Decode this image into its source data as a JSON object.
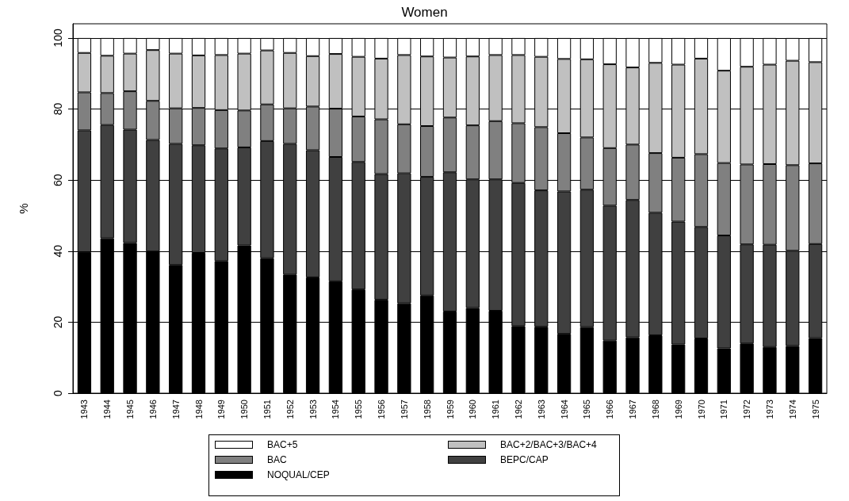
{
  "chart_data": {
    "type": "bar",
    "title": "Women",
    "ylabel": "%",
    "stacked": true,
    "categories": [
      "1943",
      "1944",
      "1945",
      "1946",
      "1947",
      "1948",
      "1949",
      "1950",
      "1951",
      "1952",
      "1953",
      "1954",
      "1955",
      "1956",
      "1957",
      "1958",
      "1959",
      "1960",
      "1961",
      "1962",
      "1963",
      "1964",
      "1965",
      "1966",
      "1967",
      "1968",
      "1969",
      "1970",
      "1971",
      "1972",
      "1973",
      "1974",
      "1975"
    ],
    "series": [
      {
        "name": "NOQUAL/CEP",
        "color": "#000000",
        "values": [
          39.7,
          43.6,
          42.3,
          39.9,
          36.1,
          39.5,
          37.2,
          41.6,
          38.0,
          33.4,
          32.6,
          31.5,
          29.2,
          26.3,
          25.3,
          27.5,
          23.0,
          24.0,
          23.2,
          18.9,
          18.7,
          16.7,
          18.6,
          14.8,
          15.7,
          16.3,
          13.7,
          15.4,
          12.6,
          14.0,
          13.0,
          13.3,
          15.5
        ]
      },
      {
        "name": "BEPC/CAP",
        "color": "#404040",
        "values": [
          34.3,
          31.9,
          31.9,
          31.4,
          34.1,
          30.3,
          31.7,
          27.6,
          33.0,
          36.8,
          35.8,
          35.0,
          35.9,
          35.4,
          36.6,
          33.4,
          39.2,
          36.2,
          37.0,
          40.3,
          38.4,
          40.1,
          38.7,
          38.0,
          38.7,
          34.5,
          34.6,
          31.4,
          31.8,
          27.9,
          28.8,
          26.8,
          26.5
        ]
      },
      {
        "name": "BAC",
        "color": "#808080",
        "values": [
          10.7,
          9.0,
          10.8,
          11.0,
          10.0,
          10.5,
          10.8,
          10.4,
          10.3,
          10.0,
          12.3,
          13.6,
          12.8,
          15.4,
          13.8,
          14.3,
          15.4,
          15.2,
          16.4,
          16.8,
          17.8,
          16.4,
          14.7,
          16.2,
          15.6,
          16.8,
          18.0,
          20.5,
          20.4,
          22.5,
          22.7,
          24.1,
          22.7
        ]
      },
      {
        "name": "BAC+2/BAC+3/BAC+4",
        "color": "#c0c0c0",
        "values": [
          11.1,
          10.5,
          10.6,
          14.3,
          15.4,
          14.8,
          15.5,
          16.0,
          15.2,
          15.6,
          14.2,
          15.4,
          16.8,
          17.1,
          19.5,
          19.6,
          16.9,
          19.4,
          18.6,
          19.2,
          19.8,
          20.9,
          22.0,
          23.6,
          21.7,
          25.4,
          26.2,
          26.9,
          26.0,
          27.5,
          28.0,
          29.4,
          28.5
        ]
      },
      {
        "name": "BAC+5",
        "color": "#ffffff",
        "values": [
          4.2,
          5.0,
          4.4,
          3.4,
          4.4,
          4.9,
          4.8,
          4.4,
          3.5,
          4.2,
          5.1,
          4.5,
          5.3,
          5.8,
          4.8,
          5.2,
          5.5,
          5.2,
          4.8,
          4.8,
          5.3,
          5.9,
          6.0,
          7.4,
          8.3,
          7.0,
          7.5,
          5.8,
          9.2,
          8.1,
          7.5,
          6.4,
          6.8
        ]
      }
    ],
    "ylim": [
      0,
      104
    ],
    "yticks": [
      0,
      20,
      40,
      60,
      80,
      100
    ],
    "grid": "y",
    "legend": "bottom"
  }
}
